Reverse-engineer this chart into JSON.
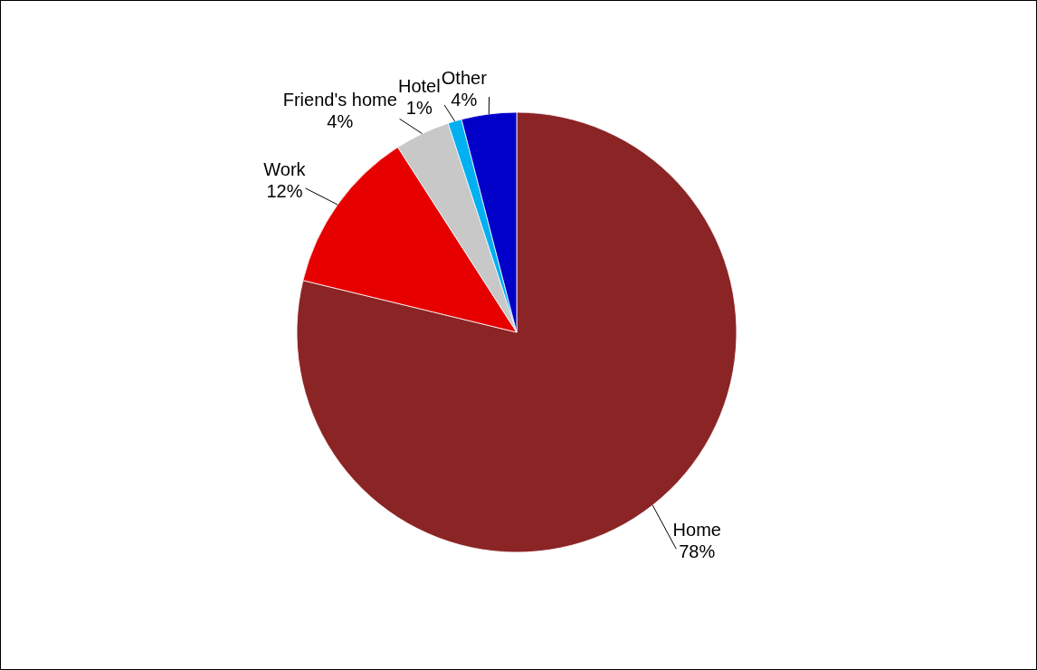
{
  "chart_data": {
    "type": "pie",
    "categories": [
      "Home",
      "Work",
      "Friend's home",
      "Hotel",
      "Other"
    ],
    "values": [
      78,
      12,
      4,
      1,
      4
    ],
    "colors": [
      "#8b2425",
      "#e60000",
      "#c8c8c8",
      "#00b0f0",
      "#0000c8"
    ],
    "value_labels": [
      "78%",
      "12%",
      "4%",
      "1%",
      "4%"
    ]
  }
}
